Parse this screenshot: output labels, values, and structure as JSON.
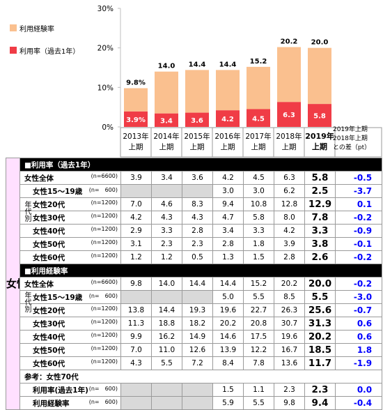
{
  "chart_data": {
    "type": "bar",
    "stacked": true,
    "categories": [
      "2013年\n上期",
      "2014年\n上期",
      "2015年\n上期",
      "2016年\n上期",
      "2017年\n上期",
      "2018年\n上期",
      "2019年\n上期"
    ],
    "series": [
      {
        "name": "利用率（過去1年）",
        "values": [
          3.9,
          3.4,
          3.6,
          4.2,
          4.5,
          6.3,
          5.8
        ],
        "color": "#f03c46",
        "labels": [
          "3.9%",
          "3.4",
          "3.6",
          "4.2",
          "4.5",
          "6.3",
          "5.8"
        ]
      },
      {
        "name": "利用経験率",
        "values": [
          9.8,
          14.0,
          14.4,
          14.4,
          15.2,
          20.2,
          20.0
        ],
        "color": "#fac08f",
        "labels": [
          "9.8%",
          "14.0",
          "14.4",
          "14.4",
          "15.2",
          "20.2",
          "20.0"
        ]
      }
    ],
    "ylim": [
      0,
      30
    ],
    "yticks": [
      "0%",
      "10%",
      "20%",
      "30%"
    ],
    "legend_position": "top-left",
    "grid": false
  },
  "diff_header": [
    "2019年上期",
    "2018年上期",
    "との差（pt）"
  ],
  "table": {
    "side_label": "女性",
    "age_label": "年代別",
    "sections": [
      {
        "title": "■利用率（過去1年）",
        "rows": [
          {
            "label": "女性全体",
            "n": "(n=6600)",
            "indent": false,
            "age": false,
            "values": [
              "3.9",
              "3.4",
              "3.6",
              "4.2",
              "4.5",
              "6.3"
            ],
            "last": "5.8",
            "diff": "-0.5"
          },
          {
            "label": "女性15～19歳",
            "n": "(n=　600)",
            "indent": true,
            "age": true,
            "values": [
              "",
              "",
              "",
              "3.0",
              "3.0",
              "6.2"
            ],
            "last": "2.5",
            "diff": "-3.7"
          },
          {
            "label": "女性20代",
            "n": "(n=1200)",
            "indent": true,
            "age": true,
            "values": [
              "7.0",
              "4.6",
              "8.3",
              "9.4",
              "10.8",
              "12.8"
            ],
            "last": "12.9",
            "diff": "0.1"
          },
          {
            "label": "女性30代",
            "n": "(n=1200)",
            "indent": true,
            "age": true,
            "values": [
              "4.2",
              "4.3",
              "4.3",
              "4.7",
              "5.8",
              "8.0"
            ],
            "last": "7.8",
            "diff": "-0.2"
          },
          {
            "label": "女性40代",
            "n": "(n=1200)",
            "indent": true,
            "age": true,
            "values": [
              "2.9",
              "3.3",
              "2.8",
              "3.4",
              "3.3",
              "4.2"
            ],
            "last": "3.3",
            "diff": "-0.9"
          },
          {
            "label": "女性50代",
            "n": "(n=1200)",
            "indent": true,
            "age": true,
            "values": [
              "3.1",
              "2.3",
              "2.3",
              "2.8",
              "1.8",
              "3.9"
            ],
            "last": "3.8",
            "diff": "-0.1"
          },
          {
            "label": "女性60代",
            "n": "(n=1200)",
            "indent": true,
            "age": true,
            "values": [
              "1.2",
              "1.2",
              "0.5",
              "1.3",
              "1.5",
              "2.8"
            ],
            "last": "2.6",
            "diff": "-0.2"
          }
        ]
      },
      {
        "title": "■利用経験率",
        "rows": [
          {
            "label": "女性全体",
            "n": "(n=6600)",
            "indent": false,
            "age": false,
            "values": [
              "9.8",
              "14.0",
              "14.4",
              "14.4",
              "15.2",
              "20.2"
            ],
            "last": "20.0",
            "diff": "-0.2"
          },
          {
            "label": "女性15～19歳",
            "n": "(n=　600)",
            "indent": true,
            "age": true,
            "values": [
              "",
              "",
              "",
              "5.0",
              "5.5",
              "8.5"
            ],
            "last": "5.5",
            "diff": "-3.0"
          },
          {
            "label": "女性20代",
            "n": "(n=1200)",
            "indent": true,
            "age": true,
            "values": [
              "13.8",
              "14.4",
              "19.3",
              "19.6",
              "22.7",
              "26.3"
            ],
            "last": "25.6",
            "diff": "-0.7"
          },
          {
            "label": "女性30代",
            "n": "(n=1200)",
            "indent": true,
            "age": true,
            "values": [
              "11.3",
              "18.8",
              "18.2",
              "20.2",
              "20.8",
              "30.7"
            ],
            "last": "31.3",
            "diff": "0.6"
          },
          {
            "label": "女性40代",
            "n": "(n=1200)",
            "indent": true,
            "age": true,
            "values": [
              "9.9",
              "16.2",
              "14.9",
              "14.6",
              "17.5",
              "19.6"
            ],
            "last": "20.2",
            "diff": "0.6"
          },
          {
            "label": "女性50代",
            "n": "(n=1200)",
            "indent": true,
            "age": true,
            "values": [
              "7.0",
              "11.0",
              "12.6",
              "13.9",
              "12.2",
              "16.7"
            ],
            "last": "18.5",
            "diff": "1.8"
          },
          {
            "label": "女性60代",
            "n": "(n=1200)",
            "indent": true,
            "age": true,
            "values": [
              "4.3",
              "5.5",
              "7.2",
              "8.4",
              "7.8",
              "13.6"
            ],
            "last": "11.7",
            "diff": "-1.9"
          }
        ]
      }
    ],
    "reference": {
      "title": "参考：女性70代",
      "rows": [
        {
          "label": "利用率(過去1年)",
          "n": "(n=　600)",
          "values": [
            "",
            "",
            "",
            "1.5",
            "1.1",
            "2.3"
          ],
          "last": "2.3",
          "diff": "0.0"
        },
        {
          "label": "利用経験率",
          "n": "(n=　600)",
          "values": [
            "",
            "",
            "",
            "5.9",
            "5.5",
            "9.8"
          ],
          "last": "9.4",
          "diff": "-0.4"
        }
      ]
    }
  }
}
